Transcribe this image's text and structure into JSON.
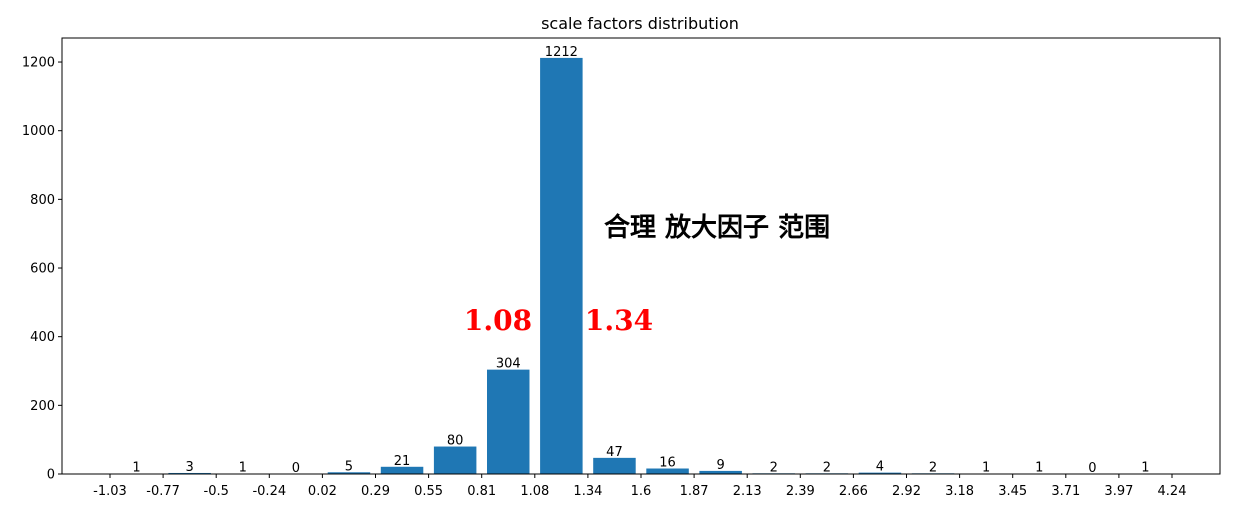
{
  "chart_data": {
    "type": "bar",
    "title": "scale factors distribution",
    "xlabel": "",
    "ylabel": "",
    "bin_edges": [
      "-1.03",
      "-0.77",
      "-0.5",
      "-0.24",
      "0.02",
      "0.29",
      "0.55",
      "0.81",
      "1.08",
      "1.34",
      "1.6",
      "1.87",
      "2.13",
      "2.39",
      "2.66",
      "2.92",
      "3.18",
      "3.45",
      "3.71",
      "3.97",
      "4.24"
    ],
    "values": [
      1,
      3,
      1,
      0,
      5,
      21,
      80,
      304,
      1212,
      47,
      16,
      9,
      2,
      2,
      4,
      2,
      1,
      1,
      0,
      1
    ],
    "ylim": [
      0,
      1270
    ],
    "y_ticks": [
      "0",
      "200",
      "400",
      "600",
      "800",
      "1000",
      "1200"
    ],
    "grid": false,
    "color": "#1f77b4",
    "annotations": {
      "range_low": "1.08",
      "range_high": "1.34",
      "range_note": "合理 放大因子 范围",
      "range_color": "#ff0000"
    }
  }
}
